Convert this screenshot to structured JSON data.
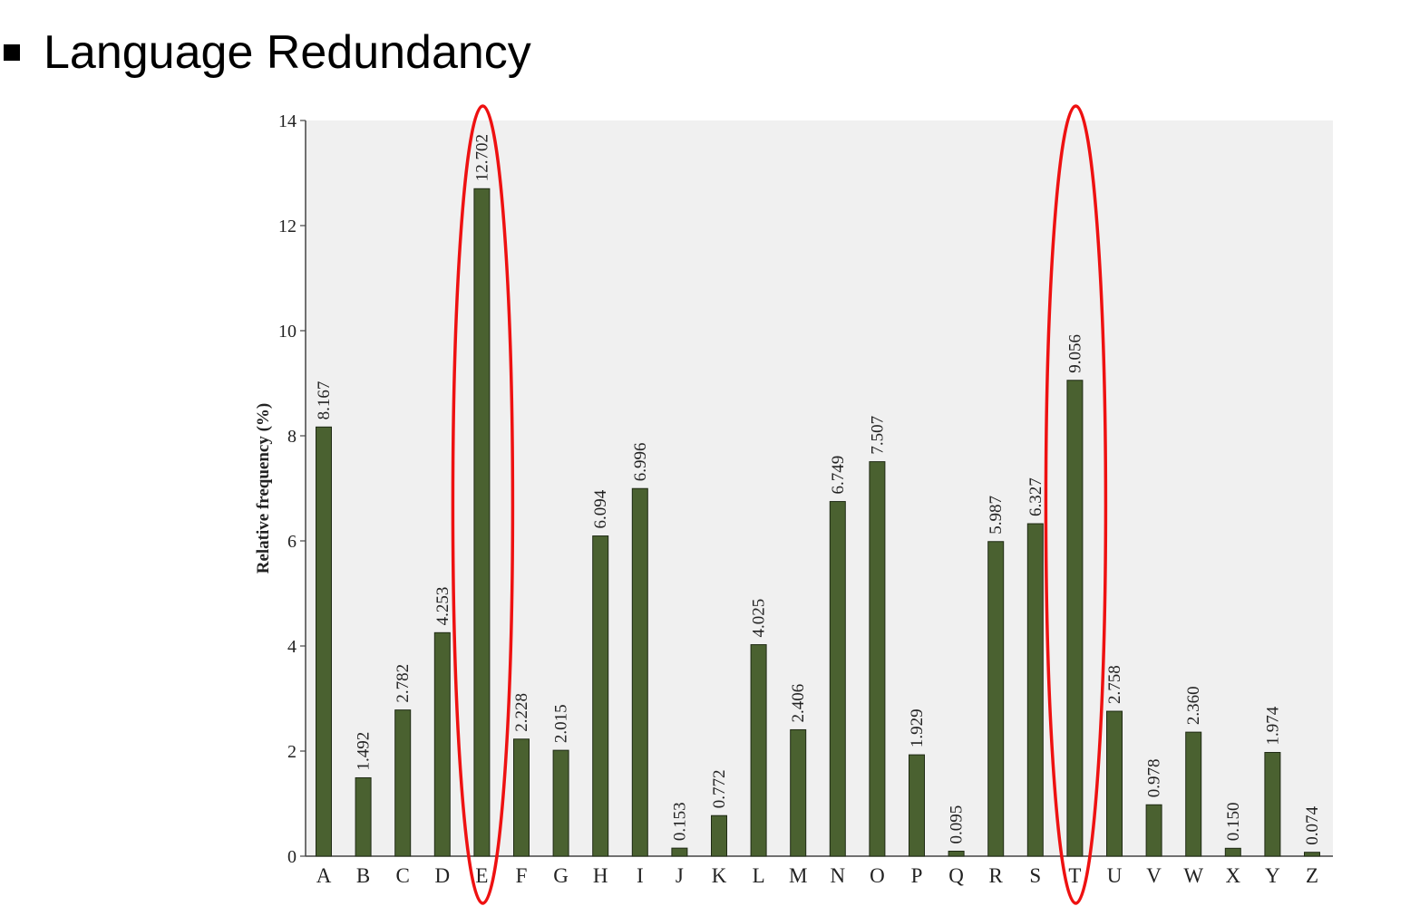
{
  "slide": {
    "title": "Language Redundancy"
  },
  "chart_data": {
    "type": "bar",
    "title": "",
    "xlabel": "",
    "ylabel": "Relative frequency (%)",
    "ylim": [
      0,
      14
    ],
    "yticks": [
      0,
      2,
      4,
      6,
      8,
      10,
      12,
      14
    ],
    "grid": false,
    "categories": [
      "A",
      "B",
      "C",
      "D",
      "E",
      "F",
      "G",
      "H",
      "I",
      "J",
      "K",
      "L",
      "M",
      "N",
      "O",
      "P",
      "Q",
      "R",
      "S",
      "T",
      "U",
      "V",
      "W",
      "X",
      "Y",
      "Z"
    ],
    "values": [
      8.167,
      1.492,
      2.782,
      4.253,
      12.702,
      2.228,
      2.015,
      6.094,
      6.996,
      0.153,
      0.772,
      4.025,
      2.406,
      6.749,
      7.507,
      1.929,
      0.095,
      5.987,
      6.327,
      9.056,
      2.758,
      0.978,
      2.36,
      0.15,
      1.974,
      0.074
    ],
    "value_labels": [
      "8.167",
      "1.492",
      "2.782",
      "4.253",
      "12.702",
      "2.228",
      "2.015",
      "6.094",
      "6.996",
      "0.153",
      "0.772",
      "4.025",
      "2.406",
      "6.749",
      "7.507",
      "1.929",
      "0.095",
      "5.987",
      "6.327",
      "9.056",
      "2.758",
      "0.978",
      "2.360",
      "0.150",
      "1.974",
      "0.074"
    ],
    "highlighted": [
      "E",
      "T"
    ],
    "colors": {
      "bar": "#4a6130",
      "bar_stroke": "#1f2a14",
      "plot_background": "#f0f0f0",
      "highlight": "#ee1111"
    }
  }
}
